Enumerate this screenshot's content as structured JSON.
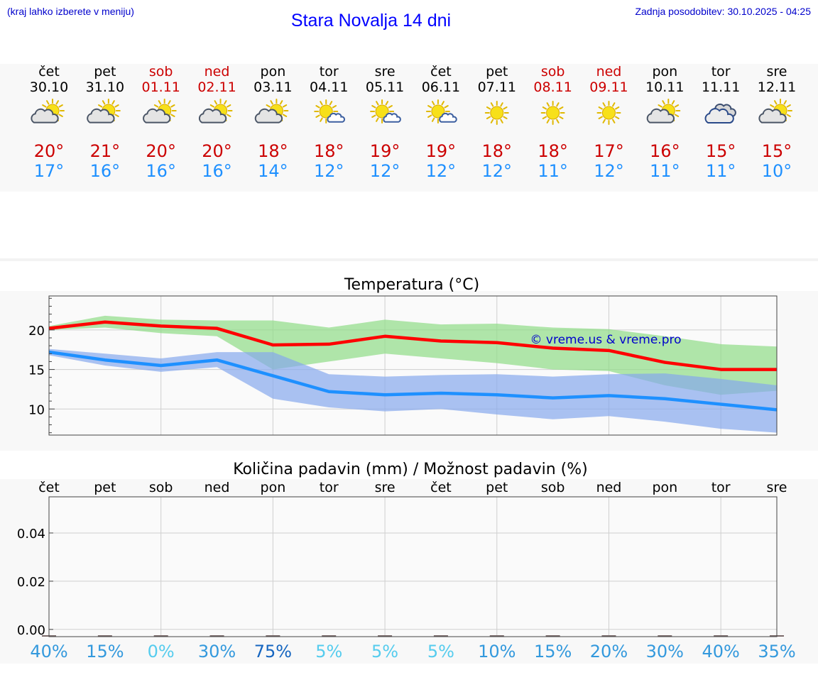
{
  "header": {
    "menu_hint": "(kraj lahko izberete v meniju)",
    "title": "Stara Novalja 14 dni",
    "updated": "Zadnja posodobitev: 30.10.2025 - 04:25"
  },
  "colors": {
    "weekday": "#000000",
    "weekend": "#cc0000",
    "tmax": "#cc0000",
    "tmin": "#1e90ff",
    "title": "#0000ff",
    "watermark": "#0000cc"
  },
  "days": [
    {
      "day": "čet",
      "date": "30.10",
      "icon": "sun-cloud-icon",
      "max": "20°",
      "min": "17°",
      "weekend": false
    },
    {
      "day": "pet",
      "date": "31.10",
      "icon": "sun-cloud-icon",
      "max": "21°",
      "min": "16°",
      "weekend": false
    },
    {
      "day": "sob",
      "date": "01.11",
      "icon": "sun-cloud-icon",
      "max": "20°",
      "min": "16°",
      "weekend": true
    },
    {
      "day": "ned",
      "date": "02.11",
      "icon": "sun-cloud-icon",
      "max": "20°",
      "min": "16°",
      "weekend": true
    },
    {
      "day": "pon",
      "date": "03.11",
      "icon": "sun-cloud-icon",
      "max": "18°",
      "min": "14°",
      "weekend": false
    },
    {
      "day": "tor",
      "date": "04.11",
      "icon": "sun-small-cloud-icon",
      "max": "18°",
      "min": "12°",
      "weekend": false
    },
    {
      "day": "sre",
      "date": "05.11",
      "icon": "sun-small-cloud-icon",
      "max": "19°",
      "min": "12°",
      "weekend": false
    },
    {
      "day": "čet",
      "date": "06.11",
      "icon": "sun-small-cloud-icon",
      "max": "19°",
      "min": "12°",
      "weekend": false
    },
    {
      "day": "pet",
      "date": "07.11",
      "icon": "sun-icon",
      "max": "18°",
      "min": "12°",
      "weekend": false
    },
    {
      "day": "sob",
      "date": "08.11",
      "icon": "sun-icon",
      "max": "18°",
      "min": "11°",
      "weekend": true
    },
    {
      "day": "ned",
      "date": "09.11",
      "icon": "sun-icon",
      "max": "17°",
      "min": "12°",
      "weekend": true
    },
    {
      "day": "pon",
      "date": "10.11",
      "icon": "sun-cloud-icon",
      "max": "16°",
      "min": "11°",
      "weekend": false
    },
    {
      "day": "tor",
      "date": "11.11",
      "icon": "cloudy-icon",
      "max": "15°",
      "min": "11°",
      "weekend": false
    },
    {
      "day": "sre",
      "date": "12.11",
      "icon": "sun-cloud-icon",
      "max": "15°",
      "min": "10°",
      "weekend": false
    }
  ],
  "chart_data": [
    {
      "type": "line",
      "title": "Temperatura (°C)",
      "watermark": "© vreme.us & vreme.pro",
      "ylim": [
        6.7,
        24.3
      ],
      "yticks": [
        10,
        15,
        20
      ],
      "x": [
        0,
        1,
        2,
        3,
        4,
        5,
        6,
        7,
        8,
        9,
        10,
        11,
        12,
        13
      ],
      "series": [
        {
          "name": "max",
          "color": "#ff0000",
          "values": [
            20.2,
            21.0,
            20.5,
            20.2,
            18.1,
            18.2,
            19.2,
            18.6,
            18.4,
            17.7,
            17.4,
            15.9,
            15.0,
            15.0
          ],
          "band_low": [
            20.0,
            20.3,
            19.6,
            19.2,
            15.0,
            16.0,
            17.0,
            16.4,
            15.8,
            15.0,
            14.8,
            13.0,
            11.8,
            12.3
          ],
          "band_high": [
            20.5,
            21.8,
            21.3,
            21.2,
            21.2,
            20.3,
            21.3,
            20.7,
            20.8,
            20.3,
            20.1,
            19.2,
            18.2,
            17.9
          ]
        },
        {
          "name": "min",
          "color": "#1e90ff",
          "values": [
            17.2,
            16.2,
            15.5,
            16.2,
            14.2,
            12.2,
            11.8,
            12.0,
            11.8,
            11.4,
            11.7,
            11.3,
            10.6,
            9.9
          ],
          "band_low": [
            16.8,
            15.5,
            14.7,
            15.3,
            11.3,
            10.2,
            9.7,
            10.0,
            9.3,
            8.7,
            9.1,
            8.4,
            7.5,
            7.0
          ],
          "band_high": [
            17.6,
            17.0,
            16.4,
            17.2,
            17.2,
            14.4,
            14.1,
            14.3,
            14.4,
            14.1,
            14.4,
            14.5,
            13.8,
            13.0
          ]
        }
      ]
    },
    {
      "type": "bar",
      "title": "Količina padavin (mm) / Možnost padavin (%)",
      "categories": [
        "čet",
        "pet",
        "sob",
        "ned",
        "pon",
        "tor",
        "sre",
        "čet",
        "pet",
        "sob",
        "ned",
        "pon",
        "tor",
        "sre"
      ],
      "ylim": [
        -0.003,
        0.055
      ],
      "yticks": [
        0.0,
        0.02,
        0.04
      ],
      "ytick_labels": [
        "0.00",
        "0.02",
        "0.04"
      ],
      "values": [
        0,
        0,
        0,
        0,
        0,
        0,
        0,
        0,
        0,
        0,
        0,
        0,
        0,
        0
      ],
      "probability": [
        "40%",
        "15%",
        "0%",
        "30%",
        "75%",
        "5%",
        "5%",
        "5%",
        "10%",
        "15%",
        "20%",
        "30%",
        "40%",
        "35%"
      ],
      "probability_values": [
        40,
        15,
        0,
        30,
        75,
        5,
        5,
        5,
        10,
        15,
        20,
        30,
        40,
        35
      ]
    }
  ]
}
